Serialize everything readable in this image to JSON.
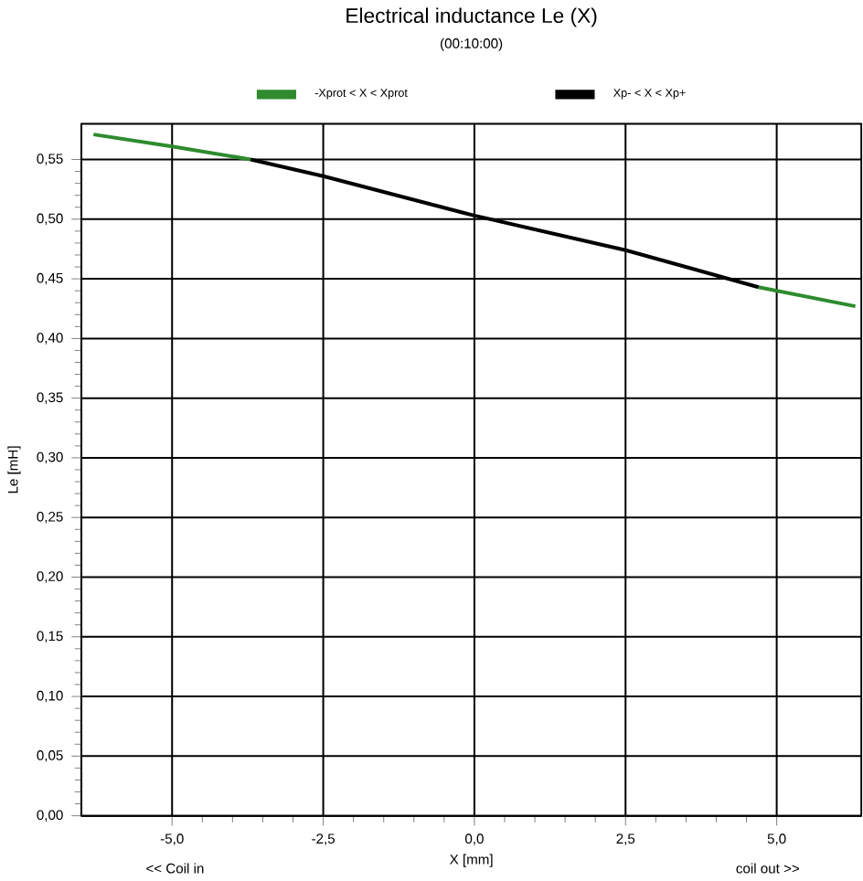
{
  "chart_data": {
    "type": "line",
    "title": "Electrical inductance Le (X)",
    "subtitle": "(00:10:00)",
    "xlabel": "X [mm]",
    "ylabel": "Le [mH]",
    "annotations": [
      "<< Coil in",
      "coil out >>"
    ],
    "series": [
      {
        "name": "-Xprot < X < Xprot",
        "color": "#2e8b2e",
        "x": [
          -6.3,
          -5.0,
          -3.7,
          null,
          4.7,
          6.3
        ],
        "values": [
          0.571,
          0.561,
          0.55,
          null,
          0.443,
          0.427
        ]
      },
      {
        "name": "Xp- < X < Xp+",
        "color": "#000000",
        "x": [
          -3.7,
          -2.5,
          0.0,
          2.5,
          4.7
        ],
        "values": [
          0.55,
          0.536,
          0.503,
          0.474,
          0.443
        ]
      }
    ],
    "xlim": [
      -6.5,
      6.4
    ],
    "ylim": [
      0,
      0.58
    ],
    "xticks": [
      {
        "value": -5,
        "label": "-5,0"
      },
      {
        "value": -2.5,
        "label": "-2,5"
      },
      {
        "value": 0,
        "label": "0,0"
      },
      {
        "value": 2.5,
        "label": "2,5"
      },
      {
        "value": 5,
        "label": "5,0"
      }
    ],
    "yticks": [
      {
        "value": 0,
        "label": "0,00"
      },
      {
        "value": 0.05,
        "label": "0,05"
      },
      {
        "value": 0.1,
        "label": "0,10"
      },
      {
        "value": 0.15,
        "label": "0,15"
      },
      {
        "value": 0.2,
        "label": "0,20"
      },
      {
        "value": 0.25,
        "label": "0,25"
      },
      {
        "value": 0.3,
        "label": "0,30"
      },
      {
        "value": 0.35,
        "label": "0,35"
      },
      {
        "value": 0.4,
        "label": "0,40"
      },
      {
        "value": 0.45,
        "label": "0,45"
      },
      {
        "value": 0.5,
        "label": "0,50"
      },
      {
        "value": 0.55,
        "label": "0,55"
      }
    ],
    "grid": true,
    "legend": "top",
    "marker": "none",
    "line_style": "solid"
  }
}
